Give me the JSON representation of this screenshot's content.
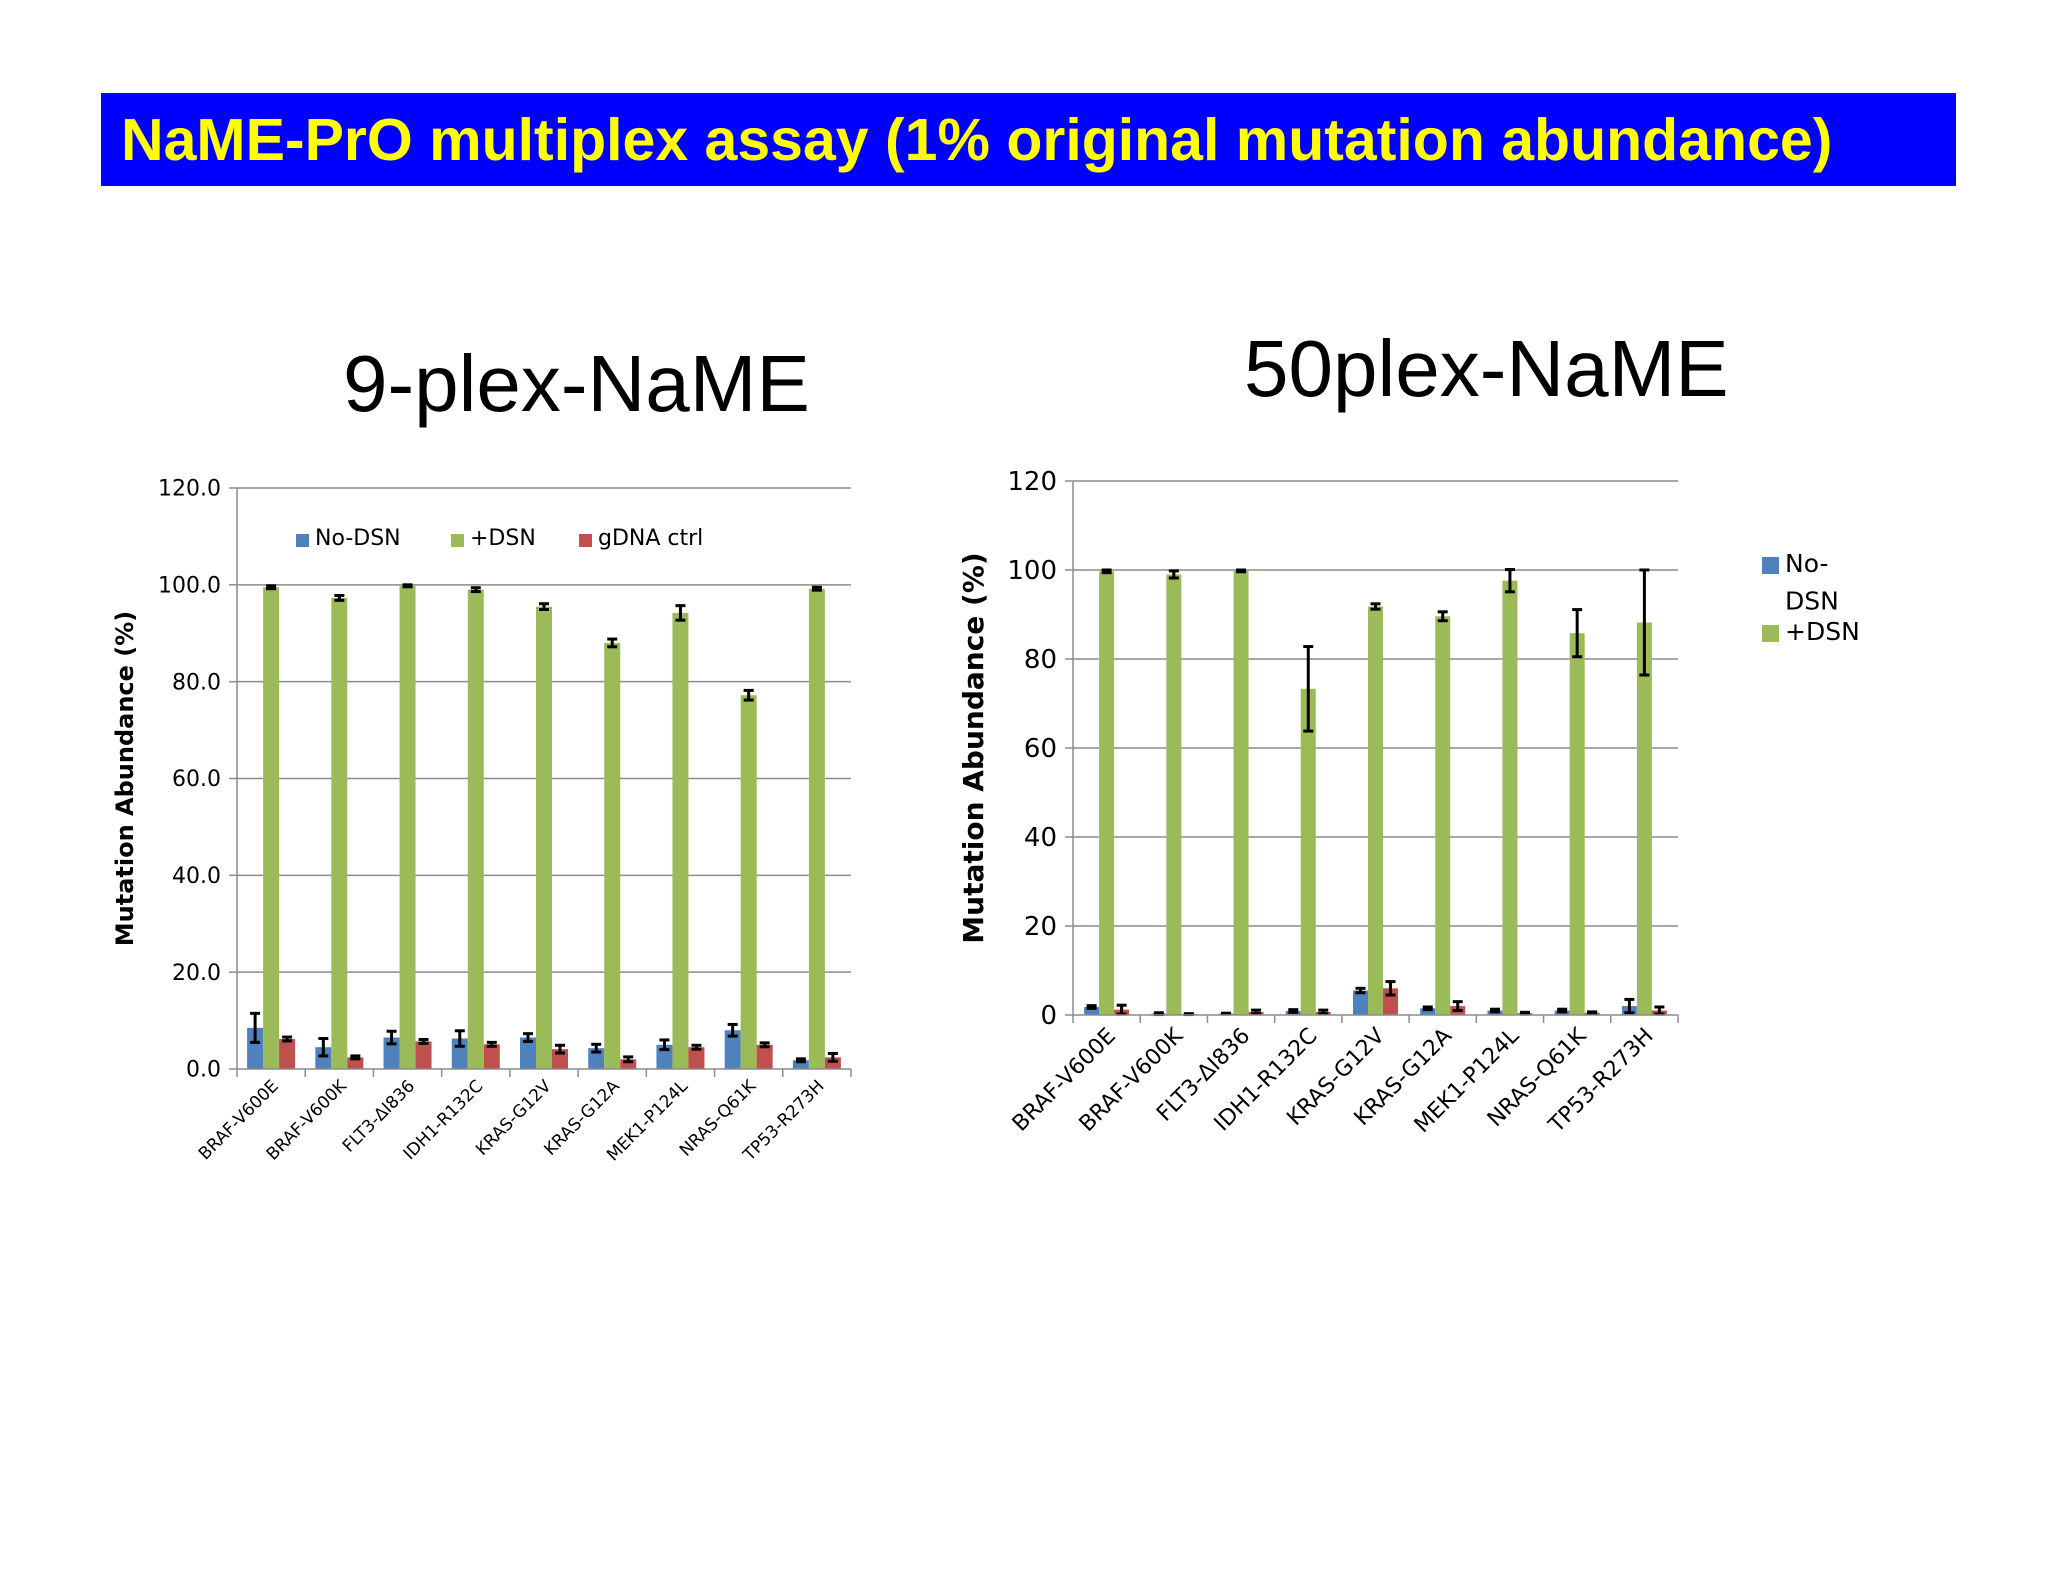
{
  "slide": {
    "title": "NaME-PrO multiplex assay (1% original mutation abundance)",
    "colors": {
      "banner_bg": "#0000ff",
      "banner_text": "#ffff00"
    }
  },
  "chart_data": [
    {
      "type": "bar",
      "title": "9-plex-NaME",
      "ylabel": "Mutation Abundance (%)",
      "ylim": [
        0,
        120
      ],
      "yticks": [
        "0.0",
        "20.0",
        "40.0",
        "60.0",
        "80.0",
        "100.0",
        "120.0"
      ],
      "legend_position": "top-inside",
      "grid": true,
      "categories": [
        "BRAF-V600E",
        "BRAF-V600K",
        "FLT3-ΔI836",
        "IDH1-R132C",
        "KRAS-G12V",
        "KRAS-G12A",
        "MEK1-P124L",
        "NRAS-Q61K",
        "TP53-R273H"
      ],
      "series": [
        {
          "name": "No-DSN",
          "color": "#4f81bd",
          "values": [
            8.5,
            4.5,
            6.5,
            6.3,
            6.5,
            4.3,
            5.0,
            8.0,
            1.8
          ],
          "errors": [
            3.0,
            1.8,
            1.3,
            1.6,
            0.8,
            0.8,
            1.0,
            1.2,
            0.3
          ]
        },
        {
          "name": "+DSN",
          "color": "#9bbb59",
          "values": [
            99.5,
            97.3,
            99.8,
            99.0,
            95.5,
            88.0,
            94.2,
            77.2,
            99.2
          ],
          "errors": [
            0.3,
            0.5,
            0.2,
            0.4,
            0.6,
            0.8,
            1.5,
            1.0,
            0.3
          ]
        },
        {
          "name": "gDNA ctrl",
          "color": "#c0504d",
          "values": [
            6.2,
            2.4,
            5.7,
            5.1,
            4.1,
            2.0,
            4.5,
            5.0,
            2.4
          ],
          "errors": [
            0.4,
            0.3,
            0.4,
            0.4,
            0.8,
            0.5,
            0.4,
            0.4,
            0.8
          ]
        }
      ]
    },
    {
      "type": "bar",
      "title": "50plex-NaME",
      "ylabel": "Mutation Abundance (%)",
      "ylim": [
        0,
        120
      ],
      "yticks": [
        "0",
        "20",
        "40",
        "60",
        "80",
        "100",
        "120"
      ],
      "legend_position": "right",
      "grid": true,
      "categories": [
        "BRAF-V600E",
        "BRAF-V600K",
        "FLT3-ΔI836",
        "IDH1-R132C",
        "KRAS-G12V",
        "KRAS-G12A",
        "MEK1-P124L",
        "NRAS-Q61K",
        "TP53-R273H"
      ],
      "series": [
        {
          "name": "No-\nDSN",
          "color": "#4f81bd",
          "values": [
            1.8,
            0.3,
            0.3,
            0.9,
            5.5,
            1.5,
            1.0,
            1.0,
            2.0
          ],
          "errors": [
            0.3,
            0.2,
            0.1,
            0.3,
            0.5,
            0.3,
            0.3,
            0.3,
            1.5
          ]
        },
        {
          "name": "+DSN",
          "color": "#9bbb59",
          "values": [
            99.7,
            99.0,
            99.8,
            73.3,
            91.8,
            89.6,
            97.6,
            85.8,
            88.2
          ],
          "errors": [
            0.3,
            0.8,
            0.2,
            9.5,
            0.6,
            1.0,
            2.5,
            5.3,
            11.8
          ]
        },
        {
          "name": "",
          "color": "#c0504d",
          "values": [
            1.2,
            0.2,
            0.7,
            0.7,
            6.0,
            2.0,
            0.4,
            0.5,
            1.0
          ],
          "errors": [
            1.0,
            0.1,
            0.4,
            0.4,
            1.5,
            1.0,
            0.2,
            0.2,
            0.8
          ]
        }
      ]
    }
  ]
}
